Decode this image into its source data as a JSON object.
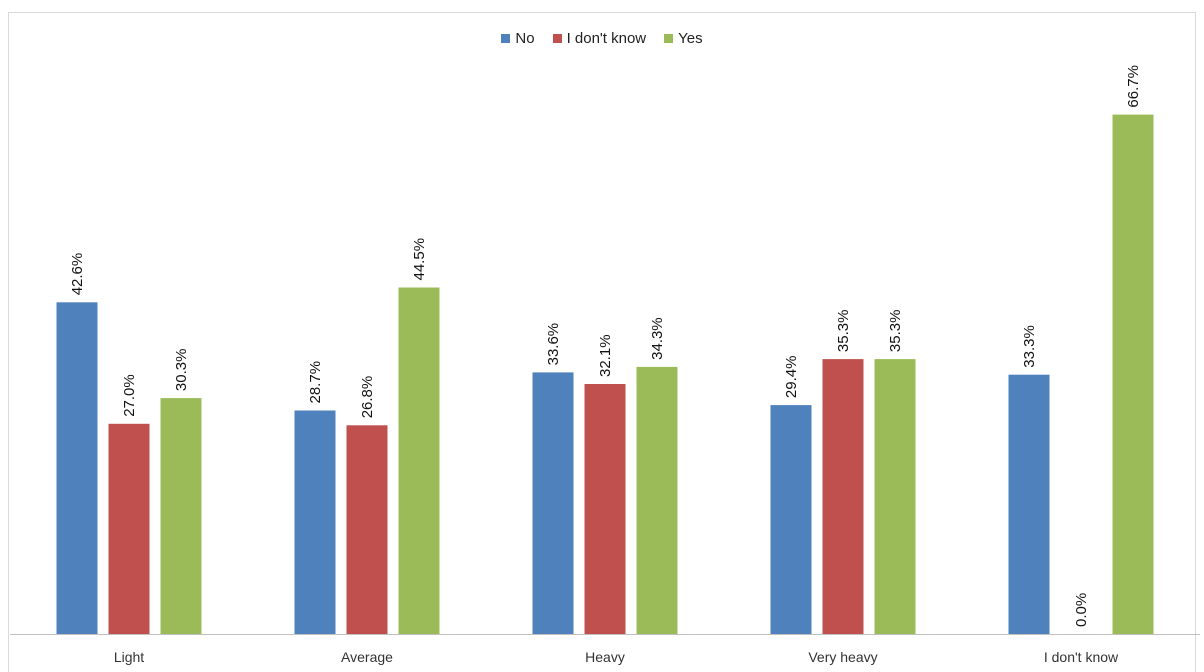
{
  "chart_data": {
    "type": "bar",
    "categories": [
      "Light",
      "Average",
      "Heavy",
      "Very heavy",
      "I don't know"
    ],
    "series": [
      {
        "name": "No",
        "color": "#4f81bd",
        "values": [
          42.6,
          28.7,
          33.6,
          29.4,
          33.3
        ],
        "labels": [
          "42.6%",
          "28.7%",
          "33.6%",
          "29.4%",
          "33.3%"
        ]
      },
      {
        "name": "I don't know",
        "color": "#c0504d",
        "values": [
          27.0,
          26.8,
          32.1,
          35.3,
          0.0
        ],
        "labels": [
          "27.0%",
          "26.8%",
          "32.1%",
          "35.3%",
          "0.0%"
        ]
      },
      {
        "name": "Yes",
        "color": "#9bbb59",
        "values": [
          30.3,
          44.5,
          34.3,
          35.3,
          66.7
        ],
        "labels": [
          "30.3%",
          "44.5%",
          "34.3%",
          "35.3%",
          "66.7%"
        ]
      }
    ],
    "ylim": [
      0,
      75
    ],
    "legend_position": "top-center",
    "grid": false
  }
}
